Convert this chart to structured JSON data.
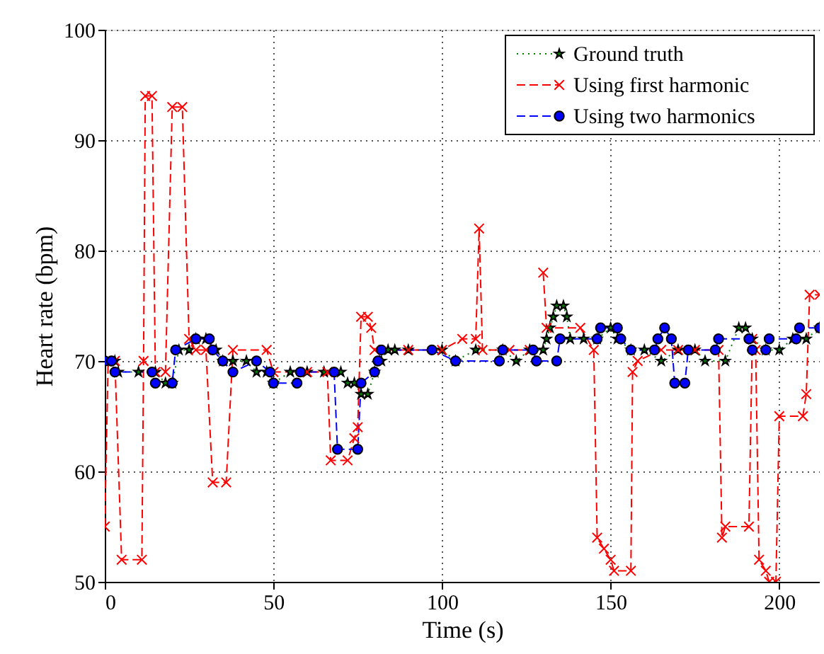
{
  "chart_data": {
    "type": "line",
    "xlabel": "Time (s)",
    "ylabel": "Heart rate (bpm)",
    "xlim": [
      0,
      212
    ],
    "xticks": [
      0,
      50,
      100,
      150,
      200
    ],
    "ylim": [
      50,
      100
    ],
    "yticks": [
      50,
      60,
      70,
      80,
      90,
      100
    ],
    "grid": true,
    "legend": "top right",
    "series": [
      {
        "name": "Ground truth",
        "color": "#008000",
        "type": "line",
        "marker": "star",
        "line_style": "dotted",
        "x": [
          0,
          3,
          4,
          10,
          15,
          18,
          20,
          22,
          25,
          27,
          30,
          33,
          35,
          38,
          42,
          45,
          48,
          50,
          55,
          60,
          65,
          70,
          72,
          74,
          76,
          78,
          80,
          82,
          84,
          86,
          90,
          100,
          104,
          110,
          118,
          122,
          126,
          130,
          131,
          132,
          133,
          134,
          136,
          137,
          138,
          142,
          146,
          150,
          152,
          156,
          160,
          165,
          170,
          175,
          178,
          184,
          188,
          190,
          192,
          196,
          200,
          204,
          208,
          212
        ],
        "values": [
          70,
          70,
          69,
          69,
          69,
          68,
          68,
          71,
          71,
          72,
          72,
          71,
          70,
          70,
          70,
          69,
          69,
          68,
          69,
          69,
          69,
          69,
          68,
          68,
          67,
          67,
          69,
          70,
          71,
          71,
          71,
          71,
          70,
          71,
          71,
          70,
          71,
          71,
          72,
          73,
          74,
          75,
          75,
          74,
          72,
          72,
          72,
          73,
          72,
          71,
          71,
          70,
          71,
          71,
          70,
          70,
          73,
          73,
          72,
          71,
          71,
          72,
          72,
          73
        ]
      },
      {
        "name": "Using first harmonic",
        "color": "#ff0000",
        "type": "line",
        "marker": "cross",
        "line_style": "dashed",
        "x": [
          0,
          1,
          3,
          5,
          11,
          11.5,
          12,
          14,
          15,
          18,
          20,
          23,
          25,
          27,
          30,
          32,
          36,
          38,
          48,
          50,
          60,
          66,
          67,
          72,
          74,
          75,
          76,
          78,
          79,
          80,
          90,
          100,
          106,
          110,
          111,
          112,
          120,
          126,
          128,
          130,
          131,
          141,
          145,
          146,
          148,
          150,
          151,
          156,
          156.5,
          158,
          165,
          170,
          175,
          182,
          183,
          184,
          191,
          192,
          193,
          194,
          196,
          197,
          199,
          200,
          207,
          208,
          209,
          212
        ],
        "values": [
          55,
          70,
          70,
          52,
          52,
          70,
          94,
          94,
          69,
          69,
          93,
          93,
          72,
          71,
          71,
          59,
          59,
          71,
          71,
          69,
          69,
          69,
          61,
          61,
          63,
          64,
          74,
          74,
          73,
          71,
          71,
          71,
          72,
          72,
          82,
          71,
          71,
          71,
          null,
          78,
          73,
          73,
          71,
          54,
          53,
          52,
          51,
          51,
          69,
          70,
          71,
          71,
          71,
          71,
          54,
          55,
          55,
          72,
          71,
          52,
          51,
          50,
          50,
          65,
          65,
          67,
          76,
          76
        ]
      },
      {
        "name": "Using two harmonics",
        "color": "#0000ff",
        "type": "line",
        "marker": "circle",
        "line_style": "dashed",
        "x": [
          0,
          2,
          3,
          14,
          15,
          20,
          21,
          27,
          31,
          32,
          35,
          38,
          45,
          49,
          50,
          57,
          58,
          68,
          69,
          75,
          76,
          80,
          81,
          82,
          97,
          104,
          117,
          118,
          127,
          128,
          134,
          135,
          146,
          147,
          152,
          153,
          156,
          163,
          164,
          166,
          168,
          169,
          172,
          173,
          181,
          182,
          191,
          192,
          196,
          197,
          205,
          206,
          212
        ],
        "values": [
          70,
          70,
          69,
          69,
          68,
          68,
          71,
          72,
          72,
          71,
          70,
          69,
          70,
          69,
          68,
          68,
          69,
          69,
          62,
          62,
          68,
          69,
          70,
          71,
          71,
          70,
          70,
          71,
          71,
          70,
          70,
          72,
          72,
          73,
          73,
          72,
          71,
          71,
          72,
          73,
          72,
          68,
          68,
          71,
          71,
          72,
          72,
          71,
          71,
          72,
          72,
          73,
          73
        ]
      }
    ]
  }
}
